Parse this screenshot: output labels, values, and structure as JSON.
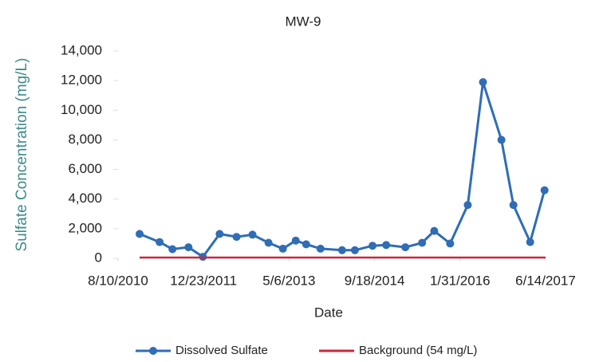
{
  "chart_data": {
    "type": "line",
    "title": "MW-9",
    "x_label": "Date",
    "y_label": "Sulfate Concentration  (mg/L)",
    "xlim": [
      "8/10/2010",
      "6/14/2017"
    ],
    "xticks": [
      "8/10/2010",
      "12/23/2011",
      "5/6/2013",
      "9/18/2014",
      "1/31/2016",
      "6/14/2017"
    ],
    "ylim": [
      0,
      14000
    ],
    "yticks": [
      0,
      {
        "value": 2000,
        "label": "2,000"
      },
      {
        "value": 4000,
        "label": "4,000"
      },
      {
        "value": 6000,
        "label": "6,000"
      },
      {
        "value": 8000,
        "label": "8,000"
      },
      {
        "value": 10000,
        "label": "10,000"
      },
      {
        "value": 12000,
        "label": "12,000"
      },
      {
        "value": 14000,
        "label": "14,000"
      }
    ],
    "legend": "bottom",
    "series": [
      {
        "name": "Dissolved Sulfate",
        "color": "#2f6db5",
        "marker": true,
        "x": [
          "12/14/2010",
          "4/10/2011",
          "6/24/2011",
          "9/26/2011",
          "12/19/2011",
          "3/26/2012",
          "7/3/2012",
          "10/4/2012",
          "1/6/2013",
          "3/31/2013",
          "6/14/2013",
          "8/14/2013",
          "11/6/2013",
          "3/12/2014",
          "5/26/2014",
          "9/6/2014",
          "11/25/2014",
          "3/17/2015",
          "6/23/2015",
          "9/2/2015",
          "12/4/2015",
          "3/16/2016",
          "6/13/2016",
          "9/29/2016",
          "12/8/2016",
          "3/16/2017",
          "6/8/2017"
        ],
        "values": [
          1650,
          1100,
          620,
          750,
          100,
          1650,
          1450,
          1600,
          1050,
          650,
          1200,
          950,
          650,
          550,
          550,
          850,
          900,
          750,
          1050,
          1850,
          1000,
          3600,
          11900,
          8000,
          3600,
          1100,
          4600
        ]
      },
      {
        "name": "Background (54 mg/L)",
        "color": "#c8283c",
        "marker": false,
        "x": [
          "12/14/2010",
          "6/14/2017"
        ],
        "values": [
          54,
          54
        ]
      }
    ]
  }
}
